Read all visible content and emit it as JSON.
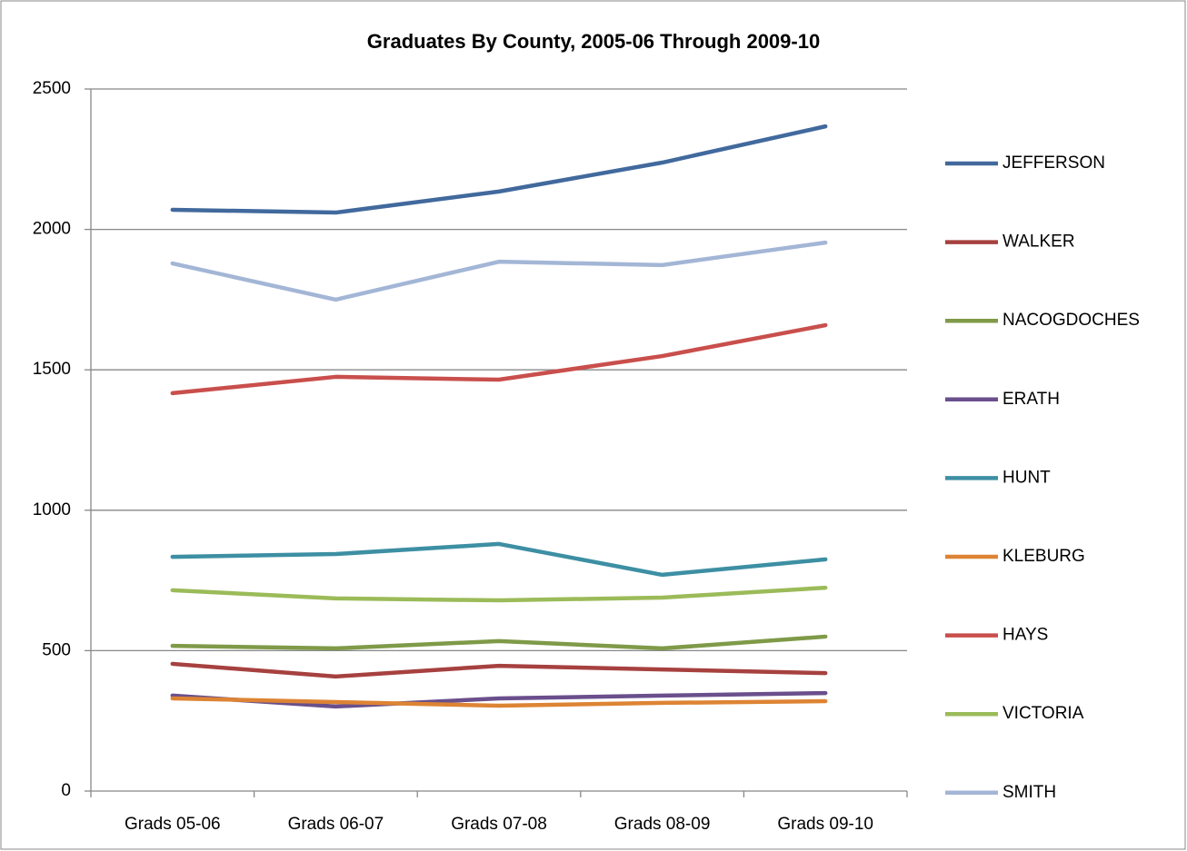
{
  "chart_data": {
    "type": "line",
    "title": "Graduates By County, 2005-06 Through 2009-10",
    "categories": [
      "Grads 05-06",
      "Grads 06-07",
      "Grads 07-08",
      "Grads 08-09",
      "Grads 09-10"
    ],
    "ylim": [
      0,
      2500
    ],
    "yticks": [
      0,
      500,
      1000,
      1500,
      2000,
      2500
    ],
    "grid": true,
    "legend": "right",
    "series": [
      {
        "name": "JEFFERSON",
        "color": "#41699d",
        "values": [
          2070,
          2060,
          2135,
          2238,
          2367
        ]
      },
      {
        "name": "WALKER",
        "color": "#a6413f",
        "values": [
          453,
          408,
          446,
          433,
          420
        ]
      },
      {
        "name": "NACOGDOCHES",
        "color": "#7f9a48",
        "values": [
          517,
          508,
          534,
          508,
          550
        ]
      },
      {
        "name": "ERATH",
        "color": "#6a4f8c",
        "values": [
          340,
          301,
          330,
          340,
          349
        ]
      },
      {
        "name": "HUNT",
        "color": "#3d8fa3",
        "values": [
          834,
          844,
          880,
          770,
          825
        ]
      },
      {
        "name": "KLEBURG",
        "color": "#dd8434",
        "values": [
          330,
          317,
          304,
          314,
          320
        ]
      },
      {
        "name": "HAYS",
        "color": "#c94f4c",
        "values": [
          1417,
          1475,
          1465,
          1549,
          1659
        ]
      },
      {
        "name": "VICTORIA",
        "color": "#9bbb59",
        "values": [
          715,
          686,
          679,
          689,
          724
        ]
      },
      {
        "name": "SMITH",
        "color": "#a3b6d6",
        "values": [
          1879,
          1750,
          1885,
          1873,
          1953
        ]
      }
    ]
  }
}
